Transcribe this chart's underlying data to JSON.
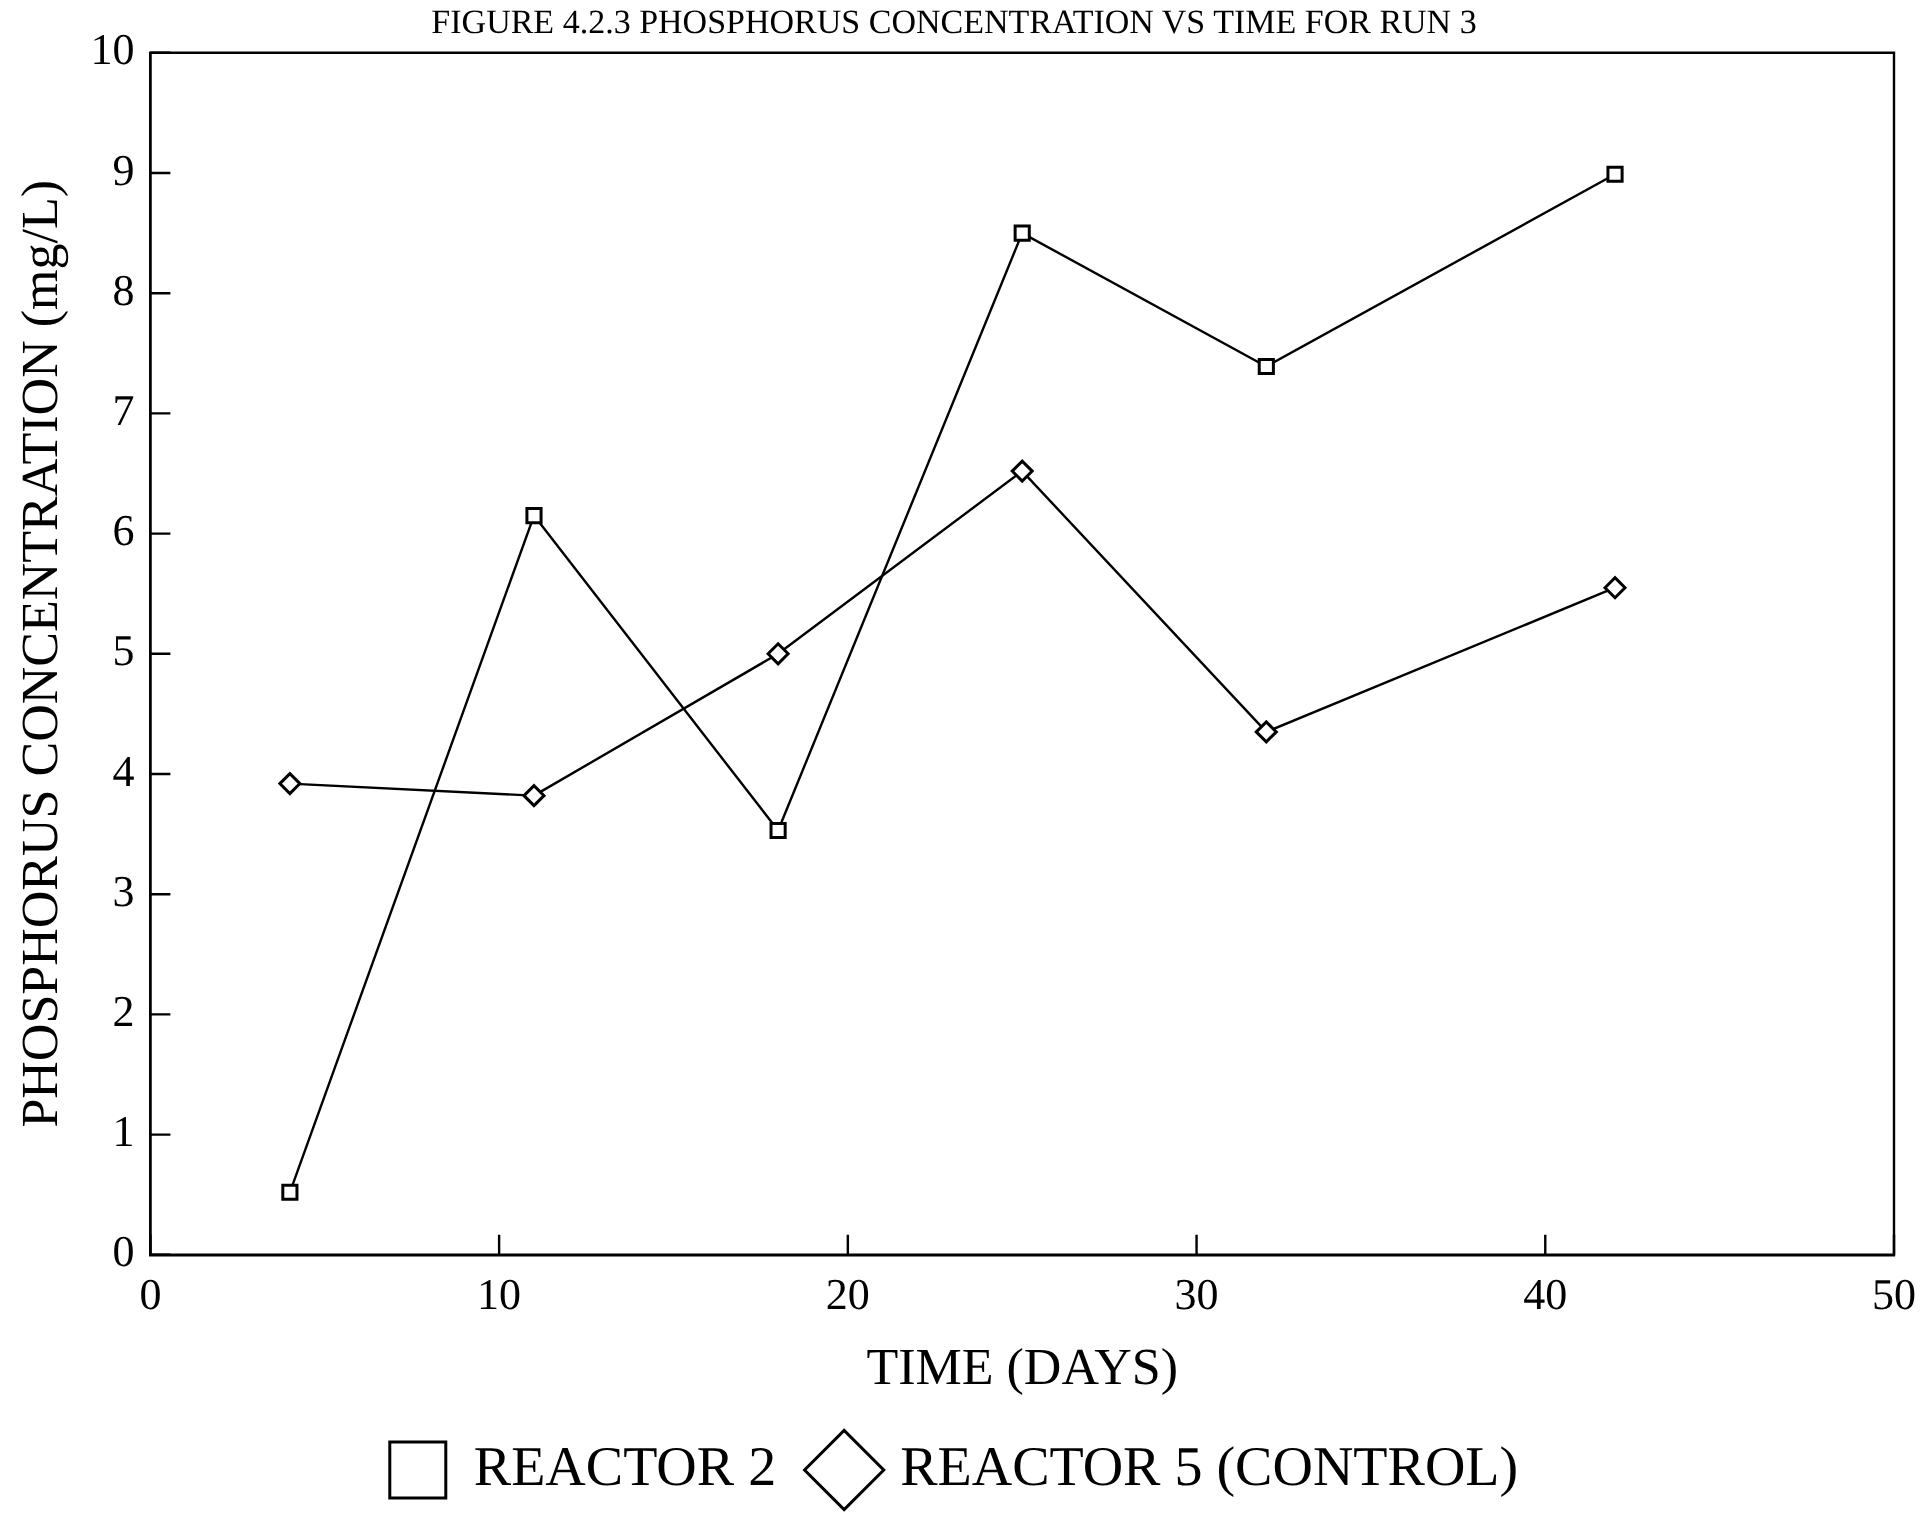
{
  "chart_data": {
    "type": "line",
    "title": "FIGURE 4.2.3 PHOSPHORUS CONCENTRATION VS TIME FOR RUN 3",
    "xlabel": "TIME (DAYS)",
    "ylabel": "PHOSPHORUS CONCENTRATION (mg/L)",
    "x": [
      4,
      11,
      18,
      25,
      32,
      42
    ],
    "series": [
      {
        "name": "REACTOR 2",
        "color": "#000000",
        "marker": "square",
        "values": [
          0.52,
          6.15,
          3.53,
          8.5,
          7.39,
          8.99
        ]
      },
      {
        "name": "REACTOR 5 (CONTROL)",
        "color": "#000000",
        "marker": "diamond",
        "values": [
          3.92,
          3.82,
          5.0,
          6.52,
          4.35,
          5.55
        ]
      }
    ],
    "xlim": [
      0,
      50
    ],
    "xticks": [
      0,
      10,
      20,
      30,
      40,
      50
    ],
    "ylim": [
      0,
      10
    ],
    "yticks": [
      0,
      1,
      2,
      3,
      4,
      5,
      6,
      7,
      8,
      9,
      10
    ],
    "grid": false,
    "legend": "bottom",
    "line_style": "solid"
  }
}
